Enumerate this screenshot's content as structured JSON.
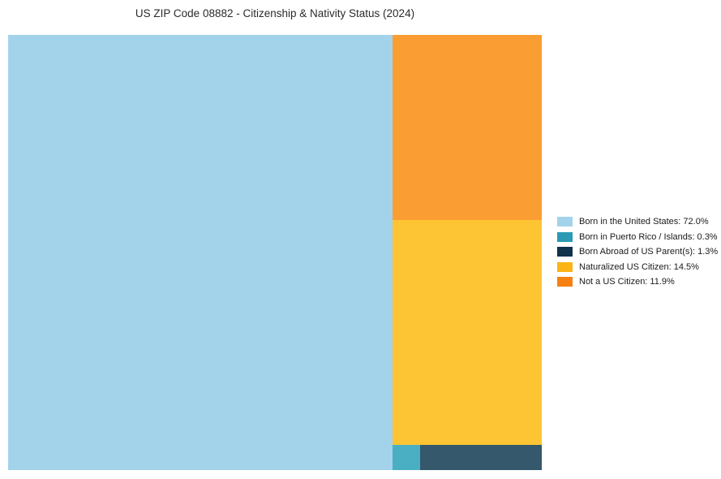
{
  "page": {
    "background_color": "#ffffff"
  },
  "chart_data": {
    "type": "treemap",
    "title": "US ZIP Code 08882 - Citizenship & Nativity Status (2024)",
    "unit": "percent",
    "legend_position": "right",
    "grid": false,
    "title_color": "#2b2b2b",
    "legend_text_color": "#1a1a1a",
    "categories": [
      "Born in the United States",
      "Born in Puerto Rico / Islands",
      "Born Abroad of US Parent(s)",
      "Naturalized US Citizen",
      "Not a US Citizen"
    ],
    "values": [
      72.0,
      0.3,
      1.3,
      14.5,
      11.9
    ],
    "items": [
      {
        "label": "Born in the United States",
        "value": 72.0,
        "legend_label": "Born in the United States: 72.0%",
        "legend_color": "#A3D3EB",
        "cell_color": "#A3D3EB"
      },
      {
        "label": "Born in Puerto Rico / Islands",
        "value": 0.3,
        "legend_label": "Born in Puerto Rico / Islands: 0.3%",
        "legend_color": "#2B9AB4",
        "cell_color": "#4BAFC4"
      },
      {
        "label": "Born Abroad of US Parent(s)",
        "value": 1.3,
        "legend_label": "Born Abroad of US Parent(s): 1.3%",
        "legend_color": "#12334C",
        "cell_color": "#36586C"
      },
      {
        "label": "Naturalized US Citizen",
        "value": 14.5,
        "legend_label": "Naturalized US Citizen: 14.5%",
        "legend_color": "#FCB415",
        "cell_color": "#FDC433"
      },
      {
        "label": "Not a US Citizen",
        "value": 11.9,
        "legend_label": "Not a US Citizen: 11.9%",
        "legend_color": "#F58112",
        "cell_color": "#FA9E33"
      }
    ]
  }
}
